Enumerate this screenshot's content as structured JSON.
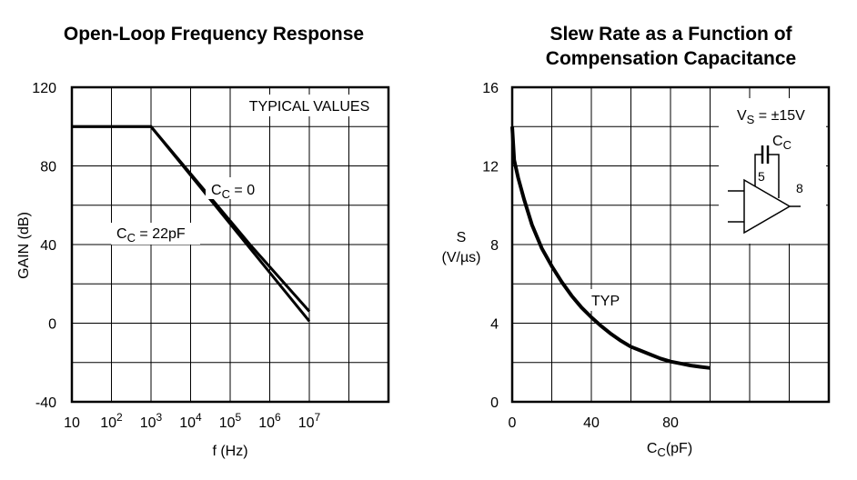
{
  "chart_data": [
    {
      "type": "line",
      "title": "Open-Loop Frequency Response",
      "xlabel": "f (Hz)",
      "ylabel": "GAIN (dB)",
      "x_scale": "log",
      "x_ticks": [
        "10",
        "10^2",
        "10^3",
        "10^4",
        "10^5",
        "10^6",
        "10^7"
      ],
      "y_ticks": [
        "120",
        "80",
        "40",
        "0",
        "-40"
      ],
      "xlim": [
        10,
        1000000000
      ],
      "ylim": [
        -40,
        120
      ],
      "grid": true,
      "annotation": "TYPICAL VALUES",
      "series": [
        {
          "name": "CC = 0",
          "x": [
            10,
            1000,
            350000,
            10000000
          ],
          "y": [
            100,
            100,
            39,
            6
          ]
        },
        {
          "name": "CC = 22pF",
          "x": [
            10,
            1000,
            10000000
          ],
          "y": [
            100,
            100,
            1
          ]
        }
      ]
    },
    {
      "type": "line",
      "title": "Slew Rate as a Function of Compensation Capacitance",
      "xlabel": "CC(pF)",
      "ylabel": "S (V/µs)",
      "x_ticks": [
        "0",
        "40",
        "80"
      ],
      "y_ticks": [
        "16",
        "12",
        "8",
        "4",
        "0"
      ],
      "xlim": [
        0,
        160
      ],
      "ylim": [
        0,
        16
      ],
      "grid": true,
      "annotation": "TYP",
      "vs_label": "VS = ±15V",
      "cc_label": "CC",
      "pin_5": "5",
      "pin_8": "8",
      "series": [
        {
          "name": "TYP",
          "x": [
            0,
            1,
            3,
            6,
            10,
            15,
            20,
            25,
            30,
            35,
            40,
            45,
            50,
            55,
            60,
            65,
            70,
            75,
            80,
            85,
            90,
            95,
            100
          ],
          "y": [
            14,
            12.3,
            11.4,
            10.3,
            9.0,
            7.8,
            6.9,
            6.1,
            5.4,
            4.8,
            4.3,
            3.85,
            3.45,
            3.1,
            2.8,
            2.6,
            2.4,
            2.2,
            2.05,
            1.95,
            1.85,
            1.78,
            1.72
          ]
        }
      ]
    }
  ]
}
